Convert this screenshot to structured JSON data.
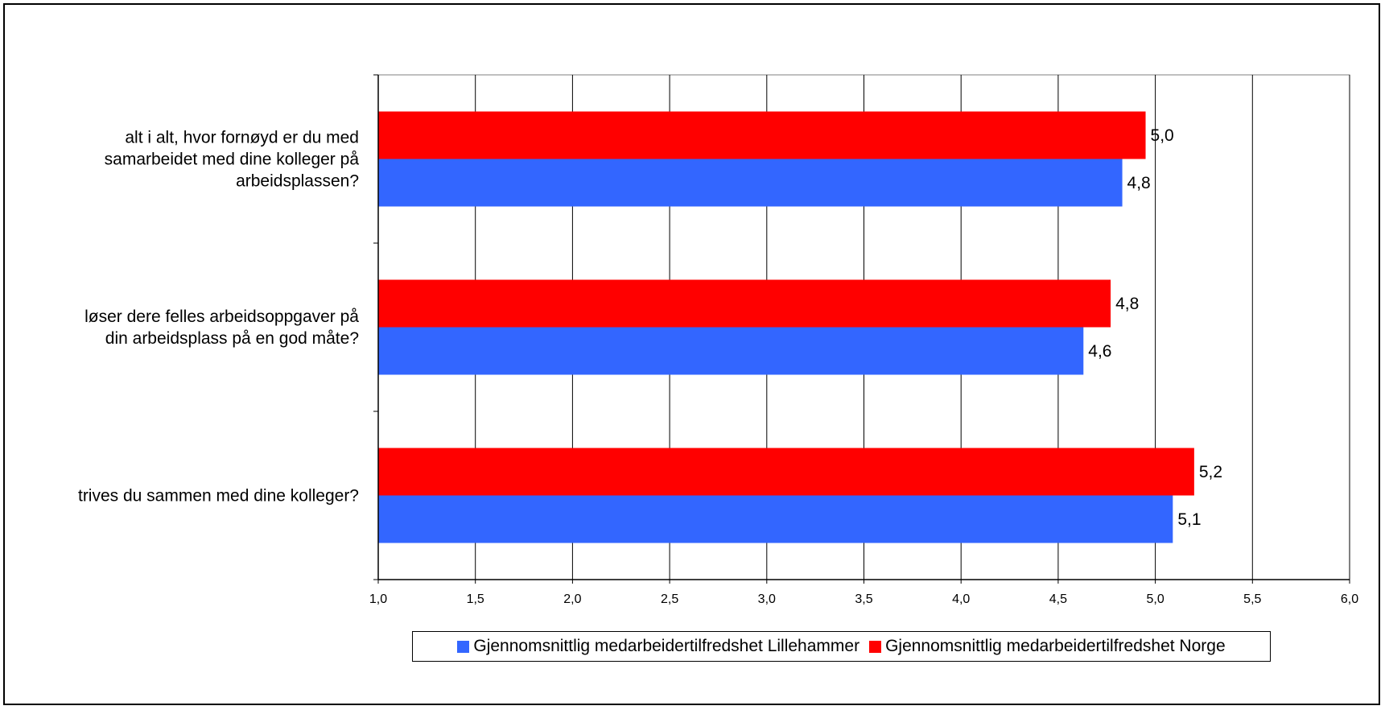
{
  "chart_data": {
    "type": "bar",
    "orientation": "horizontal",
    "categories": [
      "alt i alt, hvor fornøyd er du med samarbeidet med dine kolleger på arbeidsplassen?",
      "løser dere felles arbeidsoppgaver på din arbeidsplass på en god måte?",
      "trives du sammen med dine kolleger?"
    ],
    "category_lines": [
      [
        "alt i alt, hvor fornøyd er du med",
        "samarbeidet med dine kolleger på",
        "arbeidsplassen?"
      ],
      [
        "løser dere felles arbeidsoppgaver på",
        "din arbeidsplass på en god måte?"
      ],
      [
        "trives du sammen med dine kolleger?"
      ]
    ],
    "series": [
      {
        "name": "Gjennomsnittlig medarbeidertilfredshet Lillehammer",
        "color": "#3366FF",
        "values": [
          4.83,
          4.63,
          5.09
        ],
        "labels": [
          "4,8",
          "4,6",
          "5,1"
        ]
      },
      {
        "name": "Gjennomsnittlig medarbeidertilfredshet Norge",
        "color": "#FF0000",
        "values": [
          4.95,
          4.77,
          5.2
        ],
        "labels": [
          "5,0",
          "4,8",
          "5,2"
        ]
      }
    ],
    "xlim": [
      1.0,
      6.0
    ],
    "xticks": [
      1.0,
      1.5,
      2.0,
      2.5,
      3.0,
      3.5,
      4.0,
      4.5,
      5.0,
      5.5,
      6.0
    ],
    "xtick_labels": [
      "1,0",
      "1,5",
      "2,0",
      "2,5",
      "3,0",
      "3,5",
      "4,0",
      "4,5",
      "5,0",
      "5,5",
      "6,0"
    ],
    "title": "",
    "xlabel": "",
    "ylabel": "",
    "grid": "vertical",
    "legend_position": "bottom"
  }
}
